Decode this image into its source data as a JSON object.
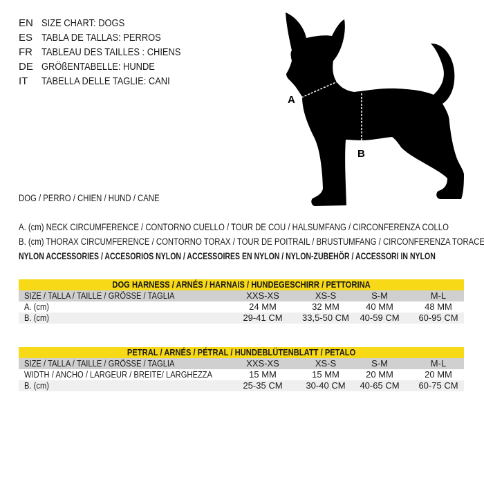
{
  "titles": [
    {
      "code": "EN",
      "text": "SIZE CHART: DOGS"
    },
    {
      "code": "ES",
      "text": "TABLA DE TALLAS: PERROS"
    },
    {
      "code": "FR",
      "text": "TABLEAU DES TAILLES : CHIENS"
    },
    {
      "code": "DE",
      "text": "GRÖßENTABELLE: HUNDE"
    },
    {
      "code": "IT",
      "text": "TABELLA DELLE TAGLIE: CANI"
    }
  ],
  "diagram": {
    "label_a": "A",
    "label_b": "B",
    "silhouette_color": "#000000"
  },
  "dog_line": "DOG / PERRO / CHIEN / HUND / CANE",
  "measure_a": "A. (cm) NECK CIRCUMFERENCE / CONTORNO CUELLO / TOUR DE COU / HALSUMFANG / CIRCONFERENZA COLLO",
  "measure_b": "B. (cm) THORAX CIRCUMFERENCE / CONTORNO TORAX / TOUR DE POITRAIL / BRUSTUMFANG / CIRCONFERENZA TORACE",
  "material": "NYLON ACCESSORIES / ACCESORIOS NYLON / ACCESSOIRES EN NYLON / NYLON-ZUBEHÖR / ACCESSORI IN NYLON",
  "accent_color": "#f7d917",
  "tables": [
    {
      "title": "DOG HARNESS / ARNÉS / HARNAIS / HUNDEGESCHIRR / PETTORINA",
      "rows": [
        {
          "label": "SIZE / TALLA / TAILLE / GRÖSSE / TAGLIA",
          "cells": [
            "XXS-XS",
            "XS-S",
            "S-M",
            "M-L"
          ]
        },
        {
          "label": "A. (cm)",
          "cells": [
            "24 MM",
            "32 MM",
            "40 MM",
            "48 MM"
          ]
        },
        {
          "label": "B. (cm)",
          "cells": [
            "29-41 CM",
            "33,5-50 CM",
            "40-59 CM",
            "60-95 CM"
          ]
        }
      ]
    },
    {
      "title": "PETRAL / ARNÉS  / PÉTRAL / HUNDEBLÜTENBLATT / PETALO",
      "rows": [
        {
          "label": "SIZE / TALLA / TAILLE / GRÖSSE / TAGLIA",
          "cells": [
            "XXS-XS",
            "XS-S",
            "S-M",
            "M-L"
          ]
        },
        {
          "label": "WIDTH / ANCHO / LARGEUR / BREITE/ LARGHEZZA",
          "cells": [
            "15 MM",
            "15 MM",
            "20 MM",
            "20 MM"
          ]
        },
        {
          "label": "B. (cm)",
          "cells": [
            "25-35 CM",
            "30-40 CM",
            "40-65 CM",
            "60-75 CM"
          ]
        }
      ]
    }
  ]
}
